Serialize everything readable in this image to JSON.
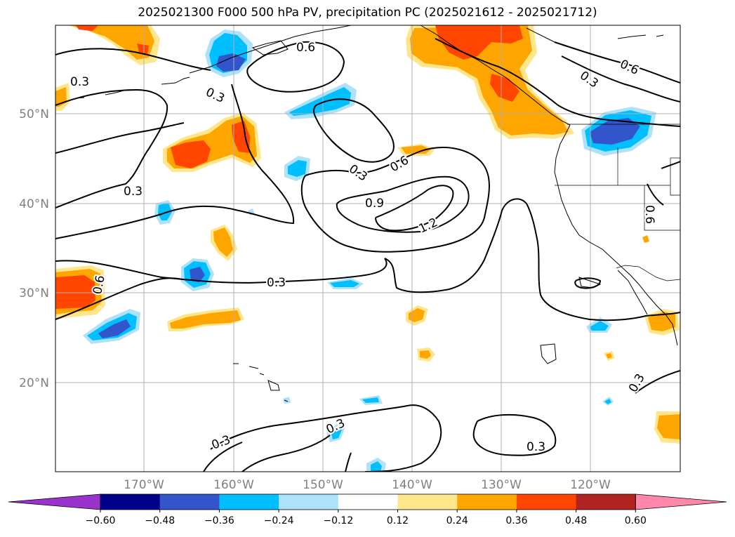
{
  "title": "2025021300 F000 500 hPa PV, precipitation PC (2025021612 - 2025021712)",
  "lat_labels": [
    "50°N",
    "40°N",
    "30°N",
    "20°N"
  ],
  "lon_labels": [
    "170°W",
    "160°W",
    "150°W",
    "140°W",
    "130°W",
    "120°W"
  ],
  "contour_labels": [
    "0.3",
    "0.3",
    "0.3",
    "0.3",
    "0.3",
    "0.3",
    "0.3",
    "0.3",
    "0.6",
    "0.6",
    "0.6",
    "0.6",
    "0.6",
    "0.9",
    "1.2",
    "0.3",
    "0.3"
  ],
  "colorbar": {
    "ticks": [
      "−0.60",
      "−0.48",
      "−0.36",
      "−0.24",
      "−0.12",
      "0.12",
      "0.24",
      "0.36",
      "0.48",
      "0.60"
    ],
    "colors": [
      "#9933cc",
      "#00008b",
      "#3355cc",
      "#00bfff",
      "#aee2fa",
      "#ffffff",
      "#ffe68a",
      "#ffa500",
      "#ff4500",
      "#b22222",
      "#ff88aa"
    ]
  },
  "colors": {
    "contour": "#000000",
    "grid": "#b0b0b0",
    "coast": "#000000"
  }
}
